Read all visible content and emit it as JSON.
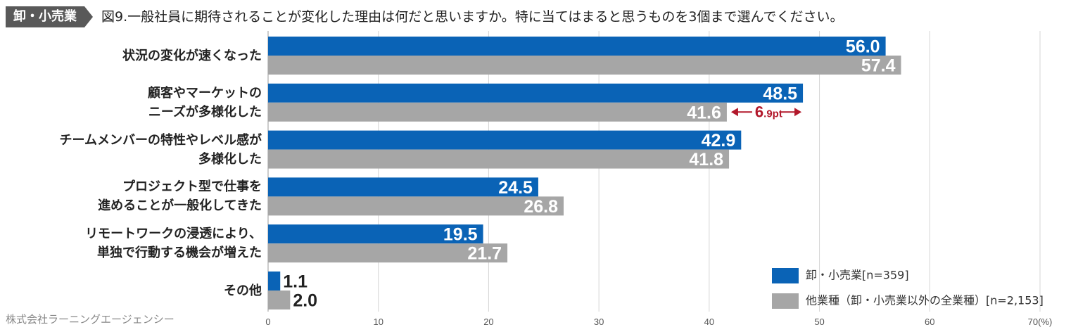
{
  "header": {
    "tag_label": "卸・小売業",
    "title": "図9.一般社員に期待されることが変化した理由は何だと思いますか。特に当てはまると思うものを3個まで選んでください。"
  },
  "credit": "株式会社ラーニングエージェンシー",
  "colors": {
    "series1": "#0a63b6",
    "series2": "#a6a6a6",
    "accent": "#b2182b",
    "tag_bg": "#595959"
  },
  "chart_data": {
    "type": "bar",
    "orientation": "horizontal",
    "categories": [
      [
        "状況の変化が速くなった"
      ],
      [
        "顧客やマーケットの",
        "ニーズが多様化した"
      ],
      [
        "チームメンバーの特性やレベル感が",
        "多様化した"
      ],
      [
        "プロジェクト型で仕事を",
        "進めることが一般化してきた"
      ],
      [
        "リモートワークの浸透により、",
        "単独で行動する機会が増えた"
      ],
      [
        "その他"
      ]
    ],
    "series": [
      {
        "name": "卸・小売業[n=359]",
        "values": [
          56.0,
          48.5,
          42.9,
          24.5,
          19.5,
          1.1
        ]
      },
      {
        "name": "他業種（卸・小売業以外の全業種）[n=2,153]",
        "values": [
          57.4,
          41.6,
          41.8,
          26.8,
          21.7,
          2.0
        ]
      }
    ],
    "value_labels": [
      [
        "56.0",
        "48.5",
        "42.9",
        "24.5",
        "19.5",
        "1.1"
      ],
      [
        "57.4",
        "41.6",
        "41.8",
        "26.8",
        "21.7",
        "2.0"
      ]
    ],
    "xlim": [
      0,
      70
    ],
    "xticks": [
      "0",
      "10",
      "20",
      "30",
      "40",
      "50",
      "60",
      "70(%)"
    ],
    "annotation": {
      "category_index": 1,
      "text_big": "6",
      "text_small": ".9pt"
    }
  }
}
